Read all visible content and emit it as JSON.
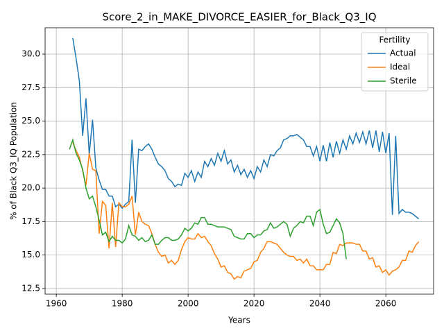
{
  "chart_data": {
    "type": "line",
    "title": "Score_2_in_MAKE_DIVORCE_EASIER_for_Black_Q3_IQ",
    "xlabel": "Years",
    "ylabel": "% of Black Q3_IQ Population",
    "xlim": [
      1956.6,
      2074.5
    ],
    "ylim": [
      12.08,
      31.97
    ],
    "xticks": [
      1960,
      1980,
      2000,
      2020,
      2040,
      2060
    ],
    "yticks": [
      12.5,
      {
        "value": 15,
        "label": "15.0"
      },
      17.5,
      {
        "value": 20,
        "label": "20.0"
      },
      22.5,
      {
        "value": 25,
        "label": "25.0"
      },
      27.5,
      {
        "value": 30,
        "label": "30.0"
      }
    ],
    "grid": true,
    "legend": "upper right",
    "legend_title": "Fertility",
    "series": [
      {
        "name": "Actual",
        "color": "#1f77b4",
        "x": [
          1965,
          1966,
          1967,
          1968,
          1969,
          1970,
          1971,
          1972,
          1973,
          1974,
          1975,
          1976,
          1977,
          1978,
          1979,
          1980,
          1981,
          1982,
          1983,
          1984,
          1985,
          1986,
          1987,
          1988,
          1989,
          1990,
          1991,
          1992,
          1993,
          1994,
          1995,
          1996,
          1997,
          1998,
          1999,
          2000,
          2001,
          2002,
          2003,
          2004,
          2005,
          2006,
          2007,
          2008,
          2009,
          2010,
          2011,
          2012,
          2013,
          2014,
          2015,
          2016,
          2017,
          2018,
          2019,
          2020,
          2021,
          2022,
          2023,
          2024,
          2025,
          2026,
          2027,
          2028,
          2029,
          2030,
          2031,
          2032,
          2033,
          2034,
          2035,
          2036,
          2037,
          2038,
          2039,
          2040,
          2041,
          2042,
          2043,
          2044,
          2045,
          2046,
          2047,
          2048,
          2049,
          2050,
          2051,
          2052,
          2053,
          2054,
          2055,
          2056,
          2057,
          2058,
          2059,
          2060,
          2061,
          2062,
          2063,
          2064,
          2065,
          2066,
          2067,
          2068,
          2069,
          2070
        ],
        "values": [
          31.2,
          29.7,
          28.0,
          23.9,
          26.7,
          22.5,
          25.1,
          21.5,
          20.6,
          19.9,
          19.9,
          19.4,
          19.4,
          18.6,
          18.8,
          18.5,
          18.8,
          19.0,
          23.6,
          18.9,
          22.9,
          22.8,
          23.1,
          23.3,
          22.9,
          22.3,
          21.8,
          21.6,
          21.3,
          20.7,
          20.5,
          20.1,
          20.3,
          20.2,
          21.1,
          20.8,
          21.3,
          20.5,
          21.2,
          20.8,
          22.0,
          21.6,
          22.2,
          21.7,
          22.6,
          22.0,
          22.8,
          21.8,
          22.1,
          21.2,
          21.7,
          21.0,
          21.4,
          20.8,
          21.3,
          20.7,
          21.6,
          21.2,
          22.1,
          21.6,
          22.5,
          22.4,
          22.8,
          23.0,
          23.6,
          23.7,
          23.9,
          23.9,
          24.0,
          23.8,
          23.6,
          23.1,
          23.1,
          22.4,
          23.1,
          22.0,
          23.2,
          22.0,
          23.4,
          22.3,
          23.5,
          22.6,
          23.6,
          22.9,
          23.9,
          23.3,
          24.1,
          23.4,
          24.2,
          23.3,
          24.3,
          23.0,
          24.3,
          22.7,
          24.2,
          22.6,
          24.1,
          18.0,
          23.9,
          18.1,
          18.4,
          18.2,
          18.2,
          18.1,
          17.9,
          17.7
        ]
      },
      {
        "name": "Ideal",
        "color": "#ff7f0e",
        "x": [
          1965,
          1966,
          1967,
          1968,
          1969,
          1970,
          1971,
          1972,
          1973,
          1974,
          1975,
          1976,
          1977,
          1978,
          1979,
          1980,
          1981,
          1982,
          1983,
          1984,
          1985,
          1986,
          1987,
          1988,
          1989,
          1990,
          1991,
          1992,
          1993,
          1994,
          1995,
          1996,
          1997,
          1998,
          1999,
          2000,
          2001,
          2002,
          2003,
          2004,
          2005,
          2006,
          2007,
          2008,
          2009,
          2010,
          2011,
          2012,
          2013,
          2014,
          2015,
          2016,
          2017,
          2018,
          2019,
          2020,
          2021,
          2022,
          2023,
          2024,
          2025,
          2026,
          2027,
          2028,
          2029,
          2030,
          2031,
          2032,
          2033,
          2034,
          2035,
          2036,
          2037,
          2038,
          2039,
          2040,
          2041,
          2042,
          2043,
          2044,
          2045,
          2046,
          2047,
          2048,
          2049,
          2050,
          2051,
          2052,
          2053,
          2054,
          2055,
          2056,
          2057,
          2058,
          2059,
          2060,
          2061,
          2062,
          2063,
          2064,
          2065,
          2066,
          2067,
          2068,
          2069,
          2070
        ],
        "values": [
          23.4,
          22.8,
          22.3,
          21.3,
          20.2,
          22.6,
          21.4,
          21.3,
          16.6,
          19.0,
          18.7,
          15.5,
          18.9,
          15.6,
          18.9,
          18.6,
          18.6,
          18.8,
          19.4,
          16.5,
          18.2,
          17.5,
          17.3,
          17.2,
          16.6,
          15.8,
          15.2,
          14.9,
          15.0,
          14.4,
          14.6,
          14.3,
          14.6,
          15.4,
          16.0,
          16.3,
          16.2,
          16.2,
          16.6,
          16.3,
          16.4,
          16.0,
          15.7,
          15.1,
          14.7,
          14.1,
          14.2,
          13.7,
          13.6,
          13.2,
          13.4,
          13.3,
          13.8,
          13.9,
          14.0,
          14.5,
          14.6,
          15.2,
          15.5,
          16.0,
          16.0,
          15.9,
          15.8,
          15.5,
          15.2,
          15.0,
          14.9,
          14.9,
          14.6,
          14.7,
          14.4,
          14.7,
          14.2,
          14.2,
          13.9,
          13.9,
          13.9,
          14.3,
          14.3,
          15.2,
          15.1,
          15.8,
          15.7,
          15.9,
          15.9,
          15.9,
          15.8,
          15.8,
          15.3,
          15.3,
          14.7,
          14.8,
          14.1,
          14.2,
          13.7,
          13.9,
          13.5,
          13.8,
          13.9,
          14.1,
          14.6,
          14.6,
          15.3,
          15.2,
          15.7,
          16.0
        ]
      },
      {
        "name": "Sterile",
        "color": "#2ca02c",
        "x": [
          1964,
          1965,
          1966,
          1967,
          1968,
          1969,
          1970,
          1971,
          1972,
          1973,
          1974,
          1975,
          1976,
          1977,
          1978,
          1979,
          1980,
          1981,
          1982,
          1983,
          1984,
          1985,
          1986,
          1987,
          1988,
          1989,
          1990,
          1991,
          1992,
          1993,
          1994,
          1995,
          1996,
          1997,
          1998,
          1999,
          2000,
          2001,
          2002,
          2003,
          2004,
          2005,
          2006,
          2007,
          2008,
          2009,
          2010,
          2011,
          2012,
          2013,
          2014,
          2015,
          2016,
          2017,
          2018,
          2019,
          2020,
          2021,
          2022,
          2023,
          2024,
          2025,
          2026,
          2027,
          2028,
          2029,
          2030,
          2031,
          2032,
          2033,
          2034,
          2035,
          2036,
          2037,
          2038,
          2039,
          2040,
          2041,
          2042,
          2043,
          2044,
          2045,
          2046,
          2047,
          2048
        ],
        "values": [
          22.9,
          23.6,
          22.6,
          22.1,
          21.4,
          20.0,
          19.2,
          19.4,
          18.6,
          17.6,
          16.5,
          16.7,
          16.0,
          16.4,
          16.1,
          16.1,
          15.9,
          16.2,
          17.2,
          16.5,
          16.4,
          16.1,
          16.3,
          16.0,
          16.1,
          16.5,
          15.8,
          15.8,
          16.1,
          16.3,
          16.3,
          16.1,
          16.1,
          16.2,
          16.5,
          17.0,
          16.8,
          17.0,
          17.4,
          17.3,
          17.8,
          17.8,
          17.3,
          17.3,
          17.2,
          17.1,
          17.1,
          17.1,
          17.0,
          16.9,
          16.4,
          16.3,
          16.2,
          16.2,
          16.6,
          16.6,
          16.3,
          16.5,
          16.5,
          16.8,
          16.9,
          17.4,
          17.0,
          17.1,
          17.3,
          17.5,
          17.3,
          16.4,
          17.0,
          17.2,
          17.5,
          17.4,
          17.9,
          17.9,
          17.2,
          18.2,
          18.4,
          17.3,
          16.6,
          16.7,
          17.2,
          17.7,
          17.4,
          16.6,
          14.7
        ]
      }
    ]
  }
}
